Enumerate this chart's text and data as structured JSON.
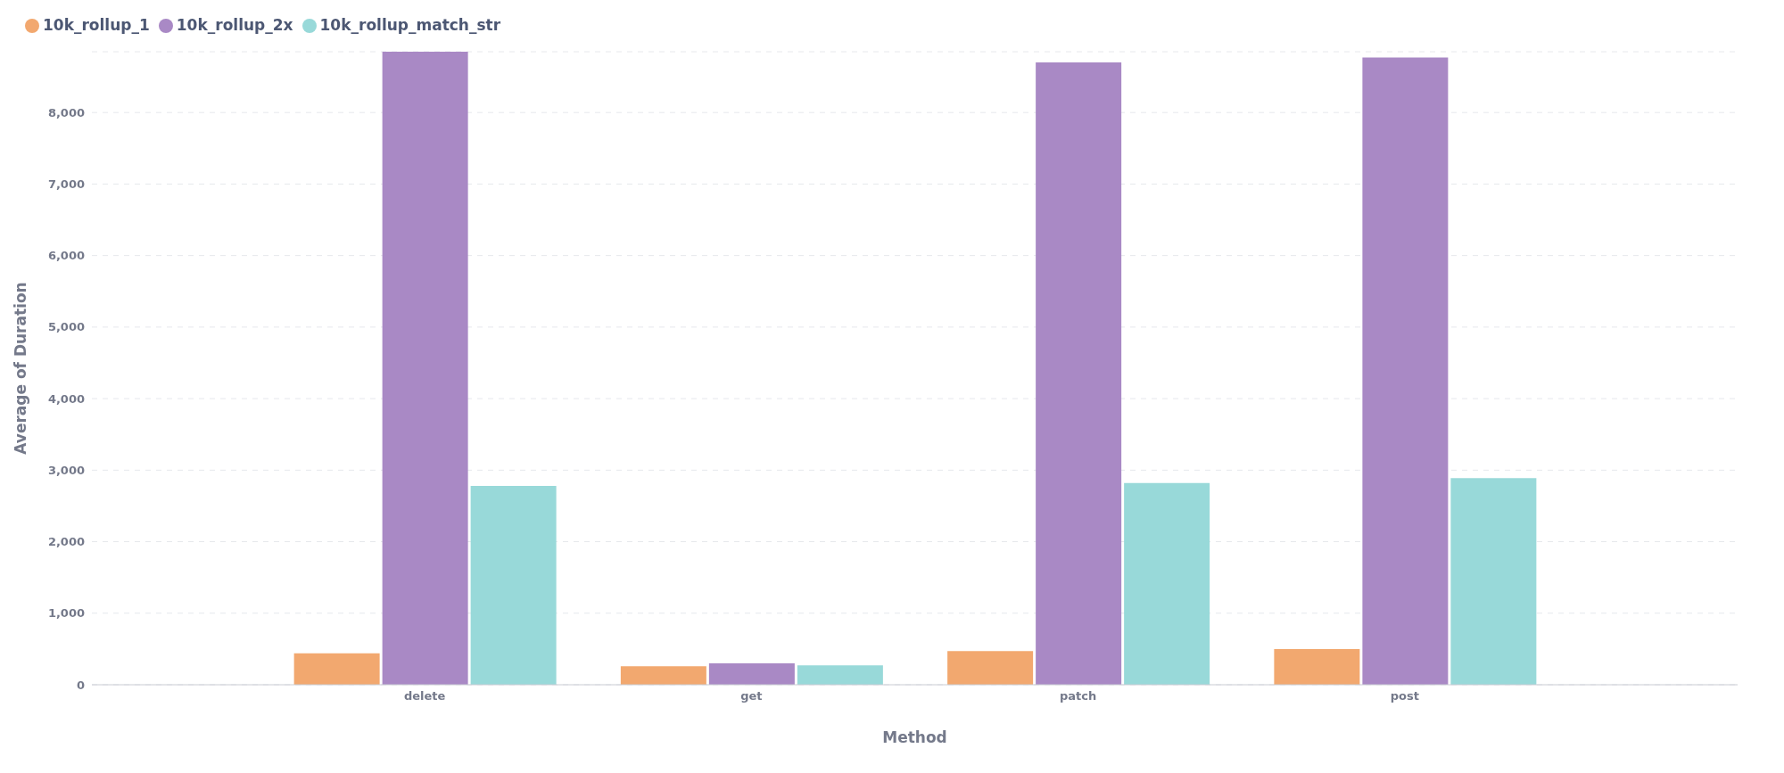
{
  "chart_data": {
    "type": "bar",
    "xlabel": "Method",
    "ylabel": "Average of Duration",
    "categories": [
      "delete",
      "get",
      "patch",
      "post"
    ],
    "series": [
      {
        "name": "10k_rollup_1",
        "color": "#f2a86f",
        "values": [
          440,
          260,
          470,
          500
        ]
      },
      {
        "name": "10k_rollup_2x",
        "color": "#a989c5",
        "values": [
          8850,
          300,
          8700,
          8770
        ]
      },
      {
        "name": "10k_rollup_match_str",
        "color": "#98d9d9",
        "values": [
          2780,
          270,
          2820,
          2890
        ]
      }
    ],
    "ylim": [
      0,
      8850
    ],
    "yticks": [
      0,
      {
        "value": 1000,
        "label": "1,000"
      },
      {
        "value": 2000,
        "label": "2,000"
      },
      {
        "value": 3000,
        "label": "3,000"
      },
      {
        "value": 4000,
        "label": "4,000"
      },
      {
        "value": 5000,
        "label": "5,000"
      },
      {
        "value": 6000,
        "label": "6,000"
      },
      {
        "value": 7000,
        "label": "7,000"
      },
      {
        "value": 8000,
        "label": "8,000"
      }
    ],
    "grid": "y",
    "legend": "top left"
  }
}
